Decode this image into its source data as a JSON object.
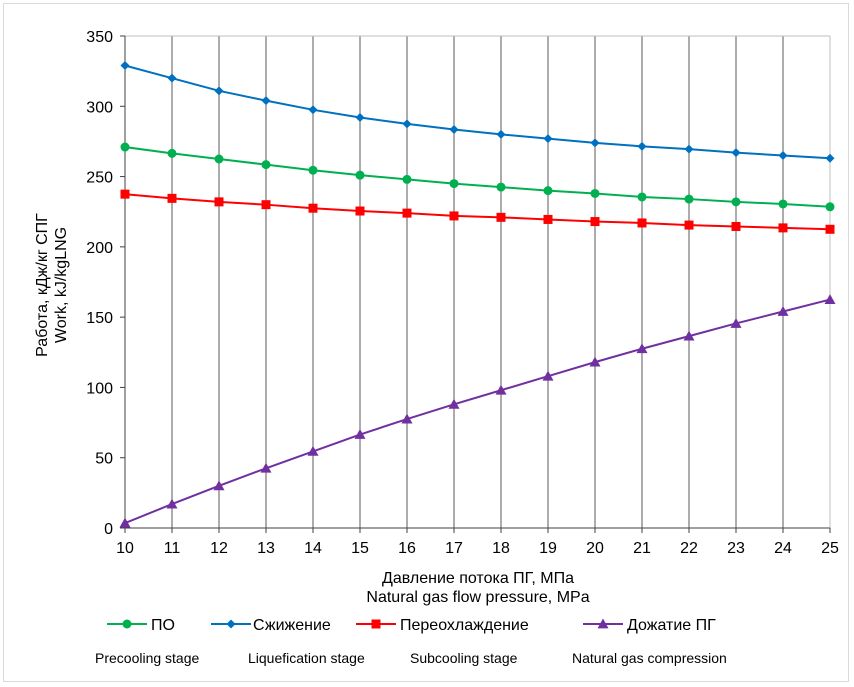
{
  "chart_data": {
    "type": "line",
    "x": [
      10,
      11,
      12,
      13,
      14,
      15,
      16,
      17,
      18,
      19,
      20,
      21,
      22,
      23,
      24,
      25
    ],
    "xlabel": [
      "Давление потока ПГ, МПа",
      "Natural gas flow pressure, MPa"
    ],
    "ylabel": [
      "Работа, кДж/кг СПГ",
      "Work, kJ/kgLNG"
    ],
    "xlim": [
      10,
      25
    ],
    "ylim": [
      0,
      350
    ],
    "yticks": [
      0,
      50,
      100,
      150,
      200,
      250,
      300,
      350
    ],
    "grid": "vertical",
    "legend_position": "bottom",
    "series": [
      {
        "name": "ПО",
        "subtitle": "Precooling stage",
        "color": "#00b050",
        "marker": "circle",
        "values": [
          271,
          266.5,
          262.5,
          258.5,
          254.5,
          251,
          248,
          245,
          242.5,
          240,
          238,
          235.5,
          234,
          232,
          230.5,
          228.5
        ]
      },
      {
        "name": "Сжижение",
        "subtitle": "Liquefication stage",
        "color": "#0070c0",
        "marker": "diamond",
        "values": [
          329,
          320,
          311,
          304,
          297.5,
          292,
          287.5,
          283.5,
          280,
          277,
          274,
          271.5,
          269.5,
          267,
          265,
          263
        ]
      },
      {
        "name": "Переохлаждение",
        "subtitle": "Subcooling stage",
        "color": "#ff0000",
        "marker": "square",
        "values": [
          237.5,
          234.5,
          232,
          230,
          227.5,
          225.5,
          224,
          222,
          221,
          219.5,
          218,
          217,
          215.5,
          214.5,
          213.5,
          212.5
        ]
      },
      {
        "name": "Дожатие ПГ",
        "subtitle": "Natural gas compression",
        "color": "#7030a0",
        "marker": "triangle",
        "values": [
          3.5,
          17,
          30,
          42.5,
          54.5,
          66.5,
          77.5,
          88,
          98,
          108,
          118,
          127.5,
          136.5,
          145.5,
          154,
          162.5
        ]
      }
    ]
  }
}
